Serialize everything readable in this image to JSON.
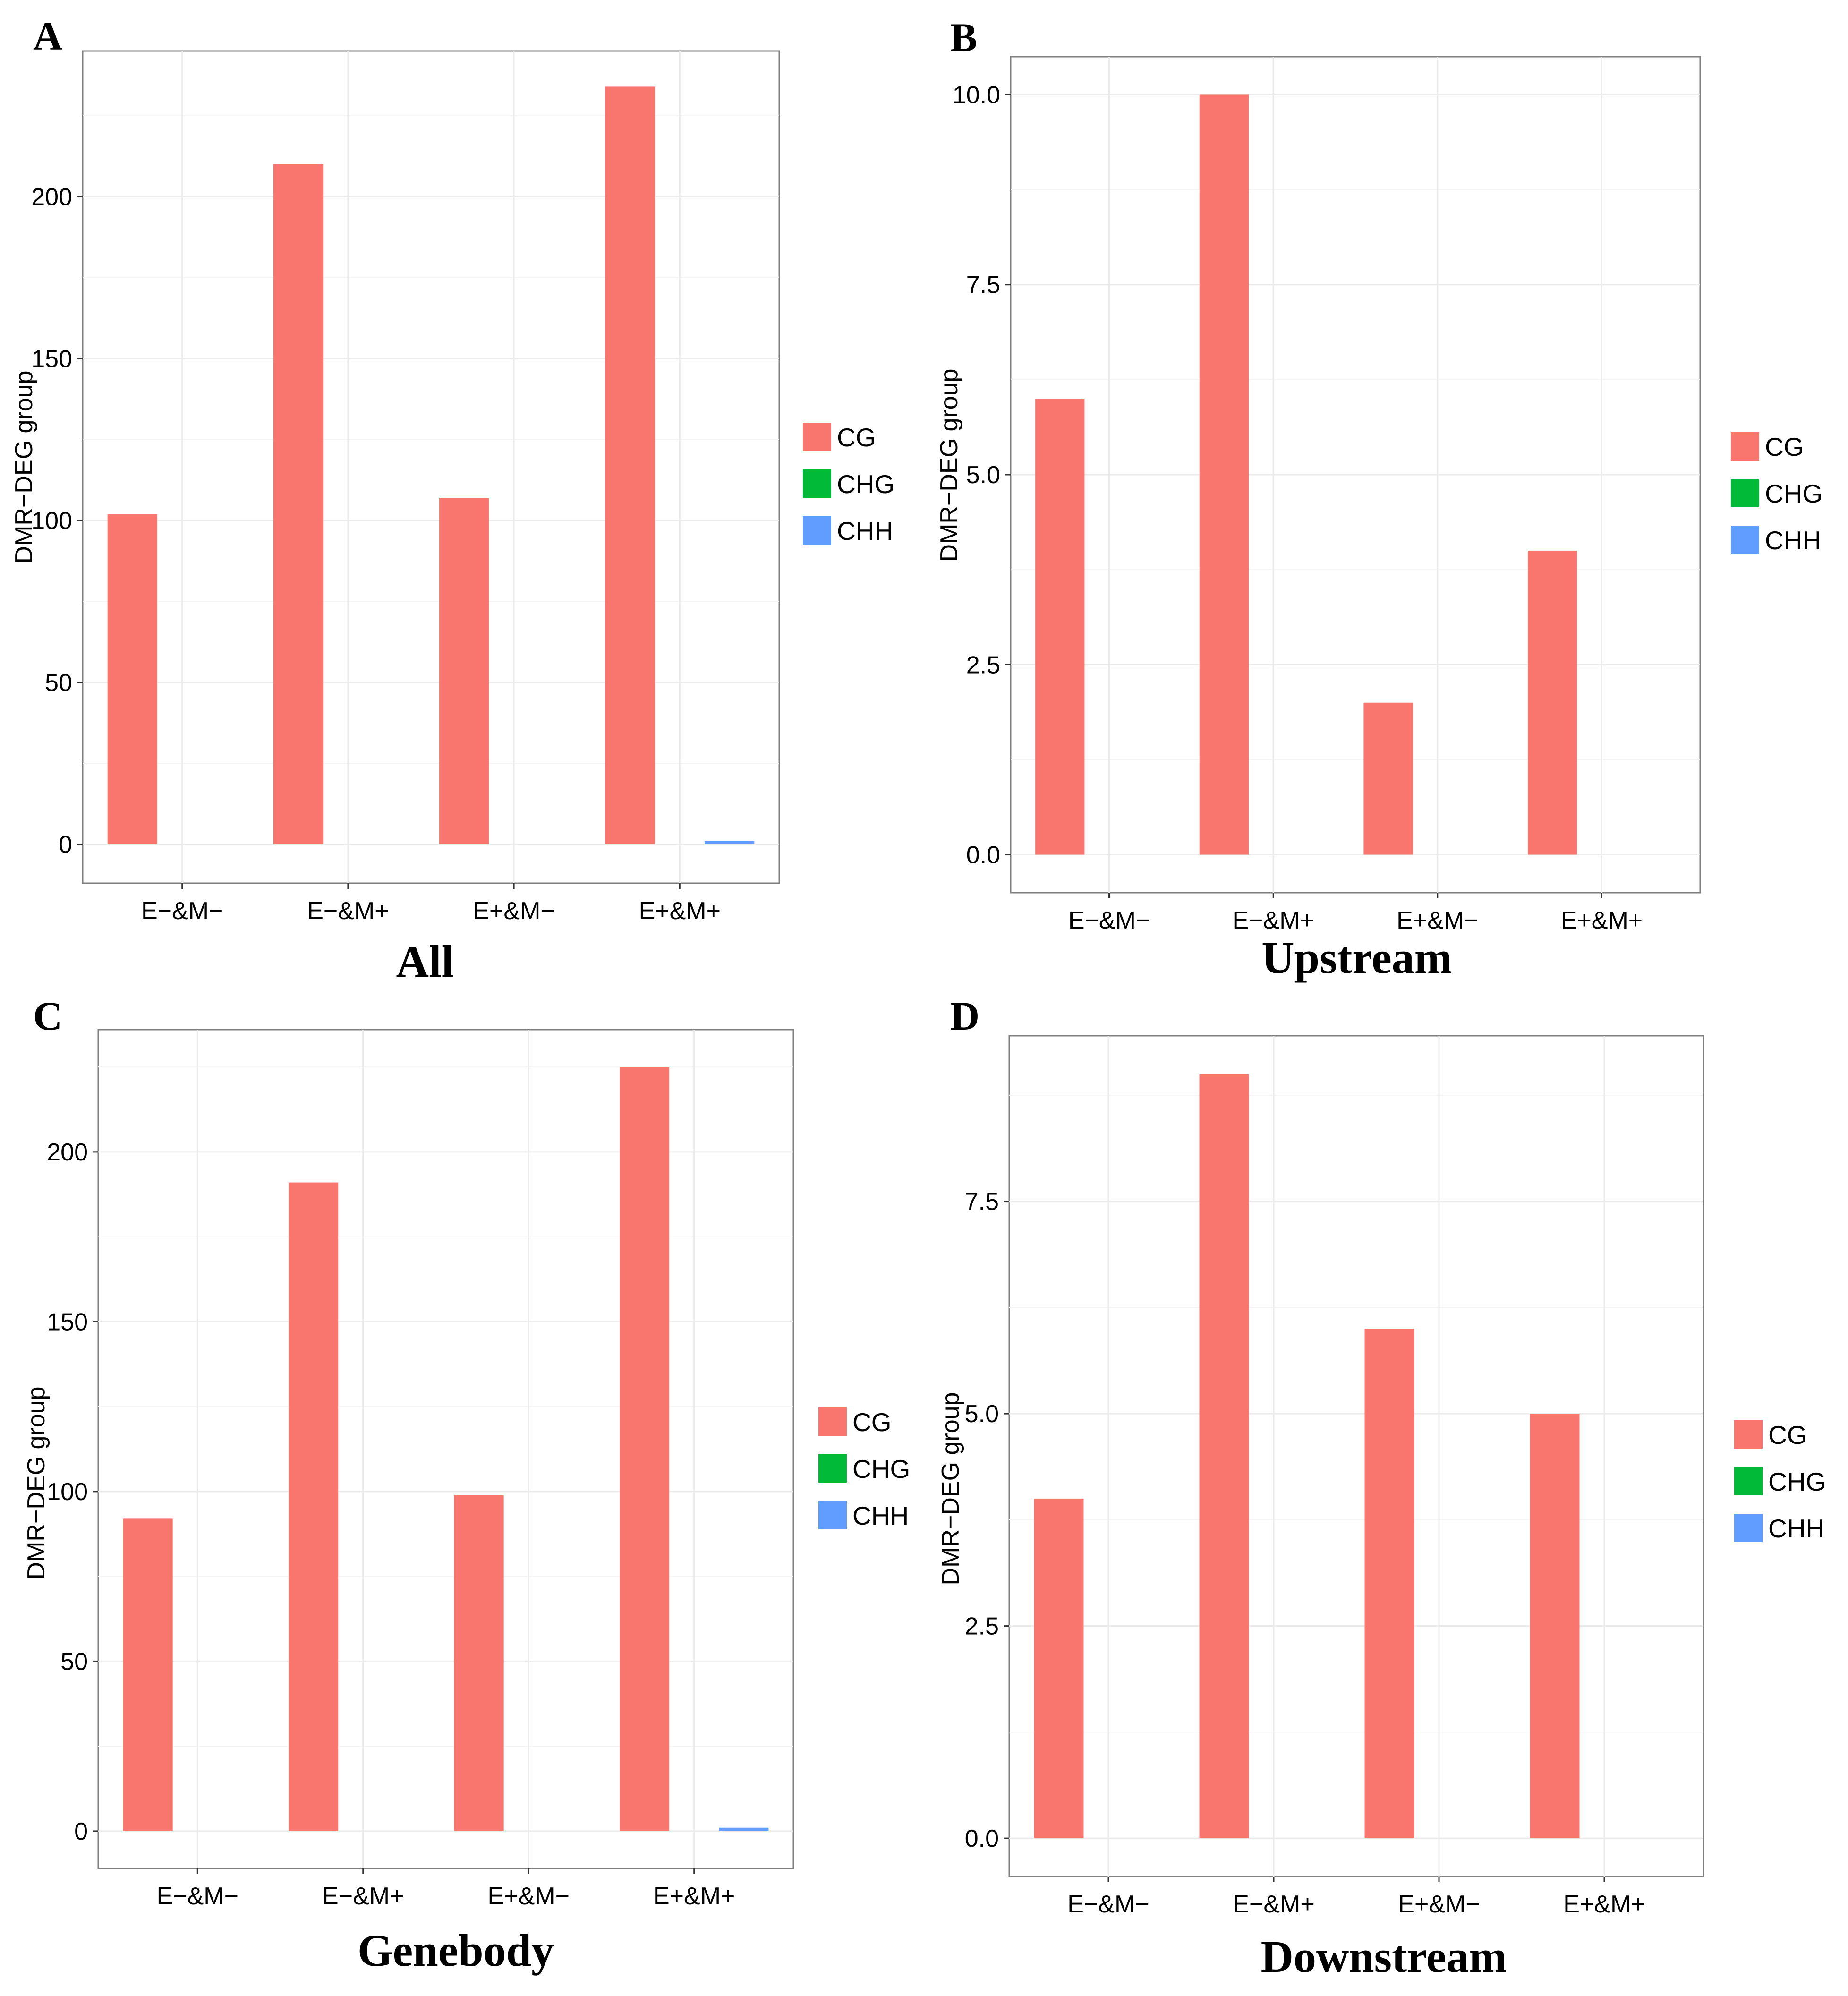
{
  "colors": {
    "CG": "#F8766D",
    "CHG": "#00BA38",
    "CHH": "#619CFF"
  },
  "chart_data": [
    {
      "type": "bar",
      "panel": "A",
      "title": "All",
      "ylabel": "DMR−DEG group",
      "categories": [
        "E−&M−",
        "E−&M+",
        "E+&M−",
        "E+&M+"
      ],
      "series": [
        {
          "name": "CG",
          "values": [
            102,
            210,
            107,
            234
          ]
        },
        {
          "name": "CHG",
          "values": [
            0,
            0,
            0,
            0
          ]
        },
        {
          "name": "CHH",
          "values": [
            0,
            0,
            0,
            1
          ]
        }
      ],
      "yticks": [
        "0",
        "50",
        "100",
        "150",
        "200"
      ],
      "ylim": [
        -12,
        245
      ],
      "grid": true,
      "legend": "right"
    },
    {
      "type": "bar",
      "panel": "B",
      "title": "Upstream",
      "ylabel": "DMR−DEG group",
      "categories": [
        "E−&M−",
        "E−&M+",
        "E+&M−",
        "E+&M+"
      ],
      "series": [
        {
          "name": "CG",
          "values": [
            6,
            10,
            2,
            4
          ]
        },
        {
          "name": "CHG",
          "values": [
            0,
            0,
            0,
            0
          ]
        },
        {
          "name": "CHH",
          "values": [
            0,
            0,
            0,
            0
          ]
        }
      ],
      "yticks": [
        "0.0",
        "2.5",
        "5.0",
        "7.5",
        "10.0"
      ],
      "ylim": [
        -0.5,
        10.5
      ],
      "grid": true,
      "legend": "right"
    },
    {
      "type": "bar",
      "panel": "C",
      "title": "Genebody",
      "ylabel": "DMR−DEG group",
      "categories": [
        "E−&M−",
        "E−&M+",
        "E+&M−",
        "E+&M+"
      ],
      "series": [
        {
          "name": "CG",
          "values": [
            92,
            191,
            99,
            225
          ]
        },
        {
          "name": "CHG",
          "values": [
            0,
            0,
            0,
            0
          ]
        },
        {
          "name": "CHH",
          "values": [
            0,
            0,
            0,
            1
          ]
        }
      ],
      "yticks": [
        "0",
        "50",
        "100",
        "150",
        "200"
      ],
      "ylim": [
        -11,
        236
      ],
      "grid": true,
      "legend": "right"
    },
    {
      "type": "bar",
      "panel": "D",
      "title": "Downstream",
      "ylabel": "DMR−DEG group",
      "categories": [
        "E−&M−",
        "E−&M+",
        "E+&M−",
        "E+&M+"
      ],
      "series": [
        {
          "name": "CG",
          "values": [
            4,
            9,
            6,
            5
          ]
        },
        {
          "name": "CHG",
          "values": [
            0,
            0,
            0,
            0
          ]
        },
        {
          "name": "CHH",
          "values": [
            0,
            0,
            0,
            0
          ]
        }
      ],
      "yticks": [
        "0.0",
        "2.5",
        "5.0",
        "7.5"
      ],
      "ylim": [
        -0.45,
        9.45
      ],
      "grid": true,
      "legend": "right"
    }
  ]
}
